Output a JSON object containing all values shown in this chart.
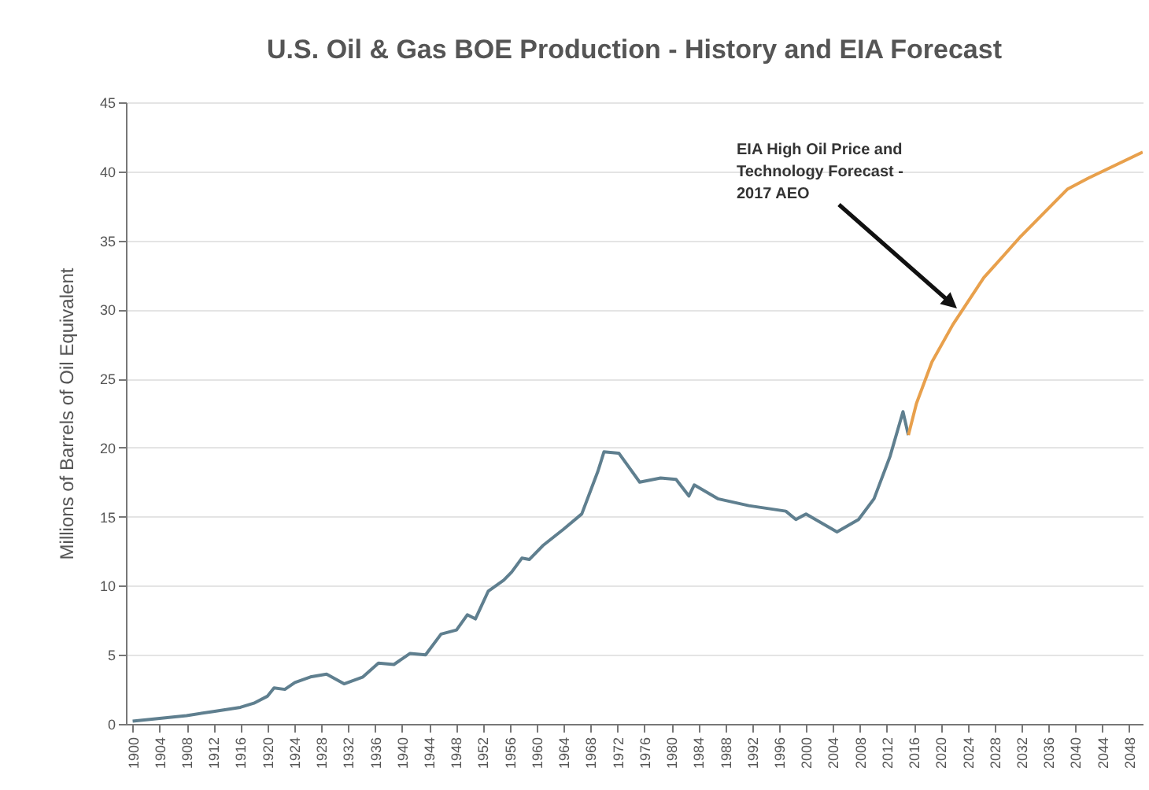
{
  "chart_data": {
    "type": "line",
    "title": "U.S. Oil & Gas BOE Production - History and EIA Forecast",
    "ylabel": "Millions of Barrels of Oil Equivalent",
    "xlim": [
      1899,
      2050
    ],
    "xticks": [
      1900,
      1904,
      1908,
      1912,
      1916,
      1920,
      1924,
      1928,
      1932,
      1936,
      1940,
      1944,
      1948,
      1952,
      1956,
      1960,
      1964,
      1968,
      1972,
      1976,
      1980,
      1984,
      1988,
      1992,
      1996,
      2000,
      2004,
      2008,
      2012,
      2016,
      2020,
      2024,
      2028,
      2032,
      2036,
      2040,
      2044,
      2048
    ],
    "ylim": [
      0,
      45
    ],
    "yticks": [
      0,
      5,
      10,
      15,
      20,
      25,
      30,
      35,
      40,
      45
    ],
    "grid": "y",
    "series": [
      {
        "color": "#5f7f8f",
        "x": [
          1900,
          1904,
          1908,
          1912,
          1916,
          1918,
          1920,
          1921,
          1922.6,
          1924.1,
          1926.4,
          1928.8,
          1931.4,
          1934.2,
          1936.5,
          1938.8,
          1941.2,
          1943.5,
          1945.8,
          1948.1,
          1949.7,
          1950.9,
          1952.8,
          1955.1,
          1956.3,
          1957.8,
          1958.9,
          1960.9,
          1964,
          1966.7,
          1969.1,
          1970,
          1972.2,
          1975.3,
          1978.4,
          1980.7,
          1982.6,
          1983.4,
          1986.9,
          1991.5,
          1997,
          1998.5,
          2000,
          2004.6,
          2007.8,
          2010.1,
          2012.5,
          2014.4,
          2015.2
        ],
        "values": [
          0.2,
          0.4,
          0.6,
          0.9,
          1.2,
          1.5,
          2.0,
          2.6,
          2.5,
          3.0,
          3.4,
          3.6,
          2.9,
          3.4,
          4.4,
          4.3,
          5.1,
          5.0,
          6.5,
          6.8,
          7.9,
          7.6,
          9.6,
          10.4,
          11.0,
          12.0,
          11.9,
          12.9,
          14.1,
          15.2,
          18.3,
          19.7,
          19.6,
          17.5,
          17.8,
          17.7,
          16.5,
          17.3,
          16.3,
          15.8,
          15.4,
          14.8,
          15.2,
          13.9,
          14.8,
          16.3,
          19.4,
          22.6,
          20.9
        ]
      },
      {
        "color": "#e8a04c",
        "x": [
          2015.2,
          2016.4,
          2018.7,
          2021.8,
          2026.4,
          2031.9,
          2038.8,
          2041.9,
          2050
        ],
        "values": [
          20.9,
          23.2,
          26.2,
          28.9,
          32.3,
          35.3,
          38.7,
          39.5,
          41.4
        ]
      }
    ],
    "annotations": [
      "EIA High Oil Price and\nTechnology Forecast -\n2017  AEO"
    ]
  }
}
